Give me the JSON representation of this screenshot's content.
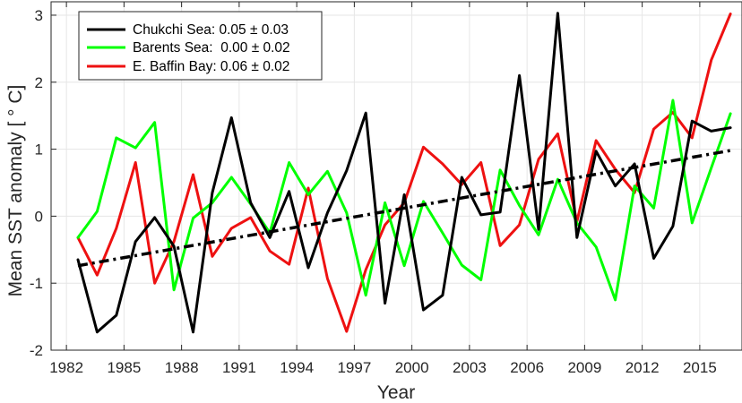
{
  "chart_data": {
    "type": "line",
    "title": "",
    "xlabel": "Year",
    "ylabel": "Mean SST anomaly [ ° C]",
    "xlim": [
      1981.2,
      2017.2
    ],
    "ylim": [
      -2,
      3.2
    ],
    "xticks": [
      1982,
      1985,
      1988,
      1991,
      1994,
      1997,
      2000,
      2003,
      2006,
      2009,
      2012,
      2015
    ],
    "yticks": [
      -2,
      -1,
      0,
      1,
      2,
      3
    ],
    "grid": true,
    "legend_position": "top-left",
    "x": [
      1982.6,
      1983.6,
      1984.6,
      1985.6,
      1986.6,
      1987.6,
      1988.6,
      1989.6,
      1990.6,
      1991.6,
      1992.6,
      1993.6,
      1994.6,
      1995.6,
      1996.6,
      1997.6,
      1998.6,
      1999.6,
      2000.6,
      2001.6,
      2002.6,
      2003.6,
      2004.6,
      2005.6,
      2006.6,
      2007.6,
      2008.6,
      2009.6,
      2010.6,
      2011.6,
      2012.6,
      2013.6,
      2014.6,
      2015.6,
      2016.6
    ],
    "series": [
      {
        "name": "Chukchi Sea",
        "legend": "Chukchi Sea: 0.05 ± 0.03",
        "color": "#000000",
        "values": [
          -0.65,
          -1.73,
          -1.48,
          -0.38,
          -0.02,
          -0.45,
          -1.73,
          0.35,
          1.47,
          0.2,
          -0.32,
          0.37,
          -0.77,
          0.05,
          0.68,
          1.54,
          -1.3,
          0.32,
          -1.4,
          -1.18,
          0.58,
          0.02,
          0.06,
          2.1,
          -0.2,
          3.03,
          -0.32,
          0.97,
          0.45,
          0.78,
          -0.63,
          -0.15,
          1.42,
          1.27,
          1.32
        ]
      },
      {
        "name": "Barents Sea",
        "legend": "Barents Sea:  0.00 ± 0.02",
        "color": "#00ff00",
        "values": [
          -0.32,
          0.07,
          1.17,
          1.02,
          1.4,
          -1.1,
          -0.03,
          0.2,
          0.58,
          0.18,
          -0.25,
          0.8,
          0.32,
          0.67,
          0.05,
          -1.18,
          0.2,
          -0.74,
          0.22,
          -0.25,
          -0.73,
          -0.95,
          0.69,
          0.16,
          -0.28,
          0.55,
          -0.1,
          -0.46,
          -1.25,
          0.45,
          0.12,
          1.73,
          -0.1,
          0.72,
          1.53
        ]
      },
      {
        "name": "E. Baffin Bay",
        "legend": "E. Baffin Bay: 0.06 ± 0.02",
        "color": "#ee1111",
        "values": [
          -0.32,
          -0.88,
          -0.18,
          0.8,
          -1.0,
          -0.38,
          0.62,
          -0.6,
          -0.18,
          -0.02,
          -0.52,
          -0.72,
          0.42,
          -0.93,
          -1.72,
          -0.8,
          -0.13,
          0.2,
          1.03,
          0.78,
          0.47,
          0.8,
          -0.44,
          -0.13,
          0.85,
          1.23,
          -0.08,
          1.13,
          0.7,
          0.35,
          1.3,
          1.55,
          1.17,
          2.33,
          3.02
        ]
      }
    ],
    "trend": {
      "name": "Linear trend",
      "style": "dash-dot",
      "color": "#000000",
      "x": [
        1982.6,
        2016.6
      ],
      "y": [
        -0.74,
        0.98
      ]
    }
  }
}
